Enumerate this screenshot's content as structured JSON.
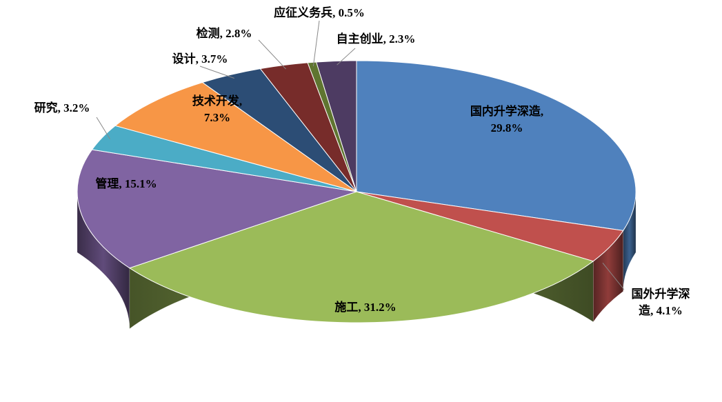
{
  "chart_data": {
    "type": "pie3d",
    "values": [
      29.8,
      4.1,
      31.2,
      15.1,
      3.2,
      7.3,
      3.7,
      2.8,
      0.5,
      2.3
    ],
    "value_labels": [
      [
        "国内升学深造,",
        "29.8%"
      ],
      [
        "国外升学深",
        "造, 4.1%"
      ],
      [
        "施工, 31.2%"
      ],
      [
        "管理, 15.1%"
      ],
      [
        "研究, 3.2%"
      ],
      [
        "技术开发,",
        "7.3%"
      ],
      [
        "设计, 3.7%"
      ],
      [
        "检测, 2.8%"
      ],
      [
        "应征义务兵, 0.5%"
      ],
      [
        "自主创业, 2.3%"
      ]
    ],
    "colors": [
      "#4f81bd",
      "#c0504d",
      "#9bbb59",
      "#8064a2",
      "#4bacc6",
      "#f79646",
      "#2c4d75",
      "#772c2a",
      "#5f7530",
      "#4d3b62"
    ]
  }
}
